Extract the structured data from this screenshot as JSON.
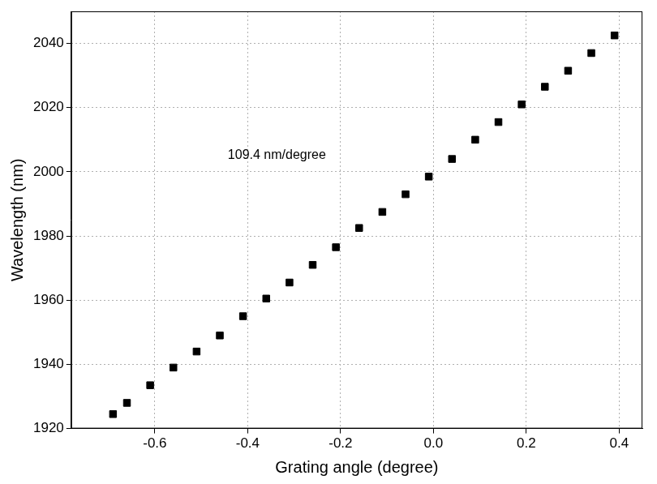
{
  "chart_data": {
    "type": "scatter",
    "x_label": "Grating angle (degree)",
    "y_label": "Wavelength (nm)",
    "annotation": "109.4 nm/degree",
    "x": [
      -0.69,
      -0.66,
      -0.61,
      -0.56,
      -0.51,
      -0.46,
      -0.41,
      -0.36,
      -0.31,
      -0.26,
      -0.21,
      -0.16,
      -0.11,
      -0.06,
      -0.01,
      0.04,
      0.09,
      0.14,
      0.19,
      0.24,
      0.29,
      0.34,
      0.39
    ],
    "values": [
      1924.5,
      1928,
      1933.5,
      1939,
      1944,
      1949,
      1955,
      1960.5,
      1965.5,
      1971,
      1976.5,
      1982.5,
      1987.5,
      1993,
      1998.5,
      2004,
      2010,
      2015.5,
      2021,
      2026.5,
      2031.5,
      2037,
      2042.5
    ],
    "color": "#000000",
    "marker": "square",
    "xlim": [
      -0.78,
      0.45
    ],
    "xticks": [
      -0.6,
      -0.4,
      -0.2,
      {
        "value": 0,
        "label": "0.0"
      },
      0.2,
      0.4
    ],
    "ylim": [
      1920,
      2050
    ],
    "yticks": [
      1920,
      1940,
      1960,
      1980,
      2000,
      2020,
      2040
    ],
    "grid": true
  }
}
